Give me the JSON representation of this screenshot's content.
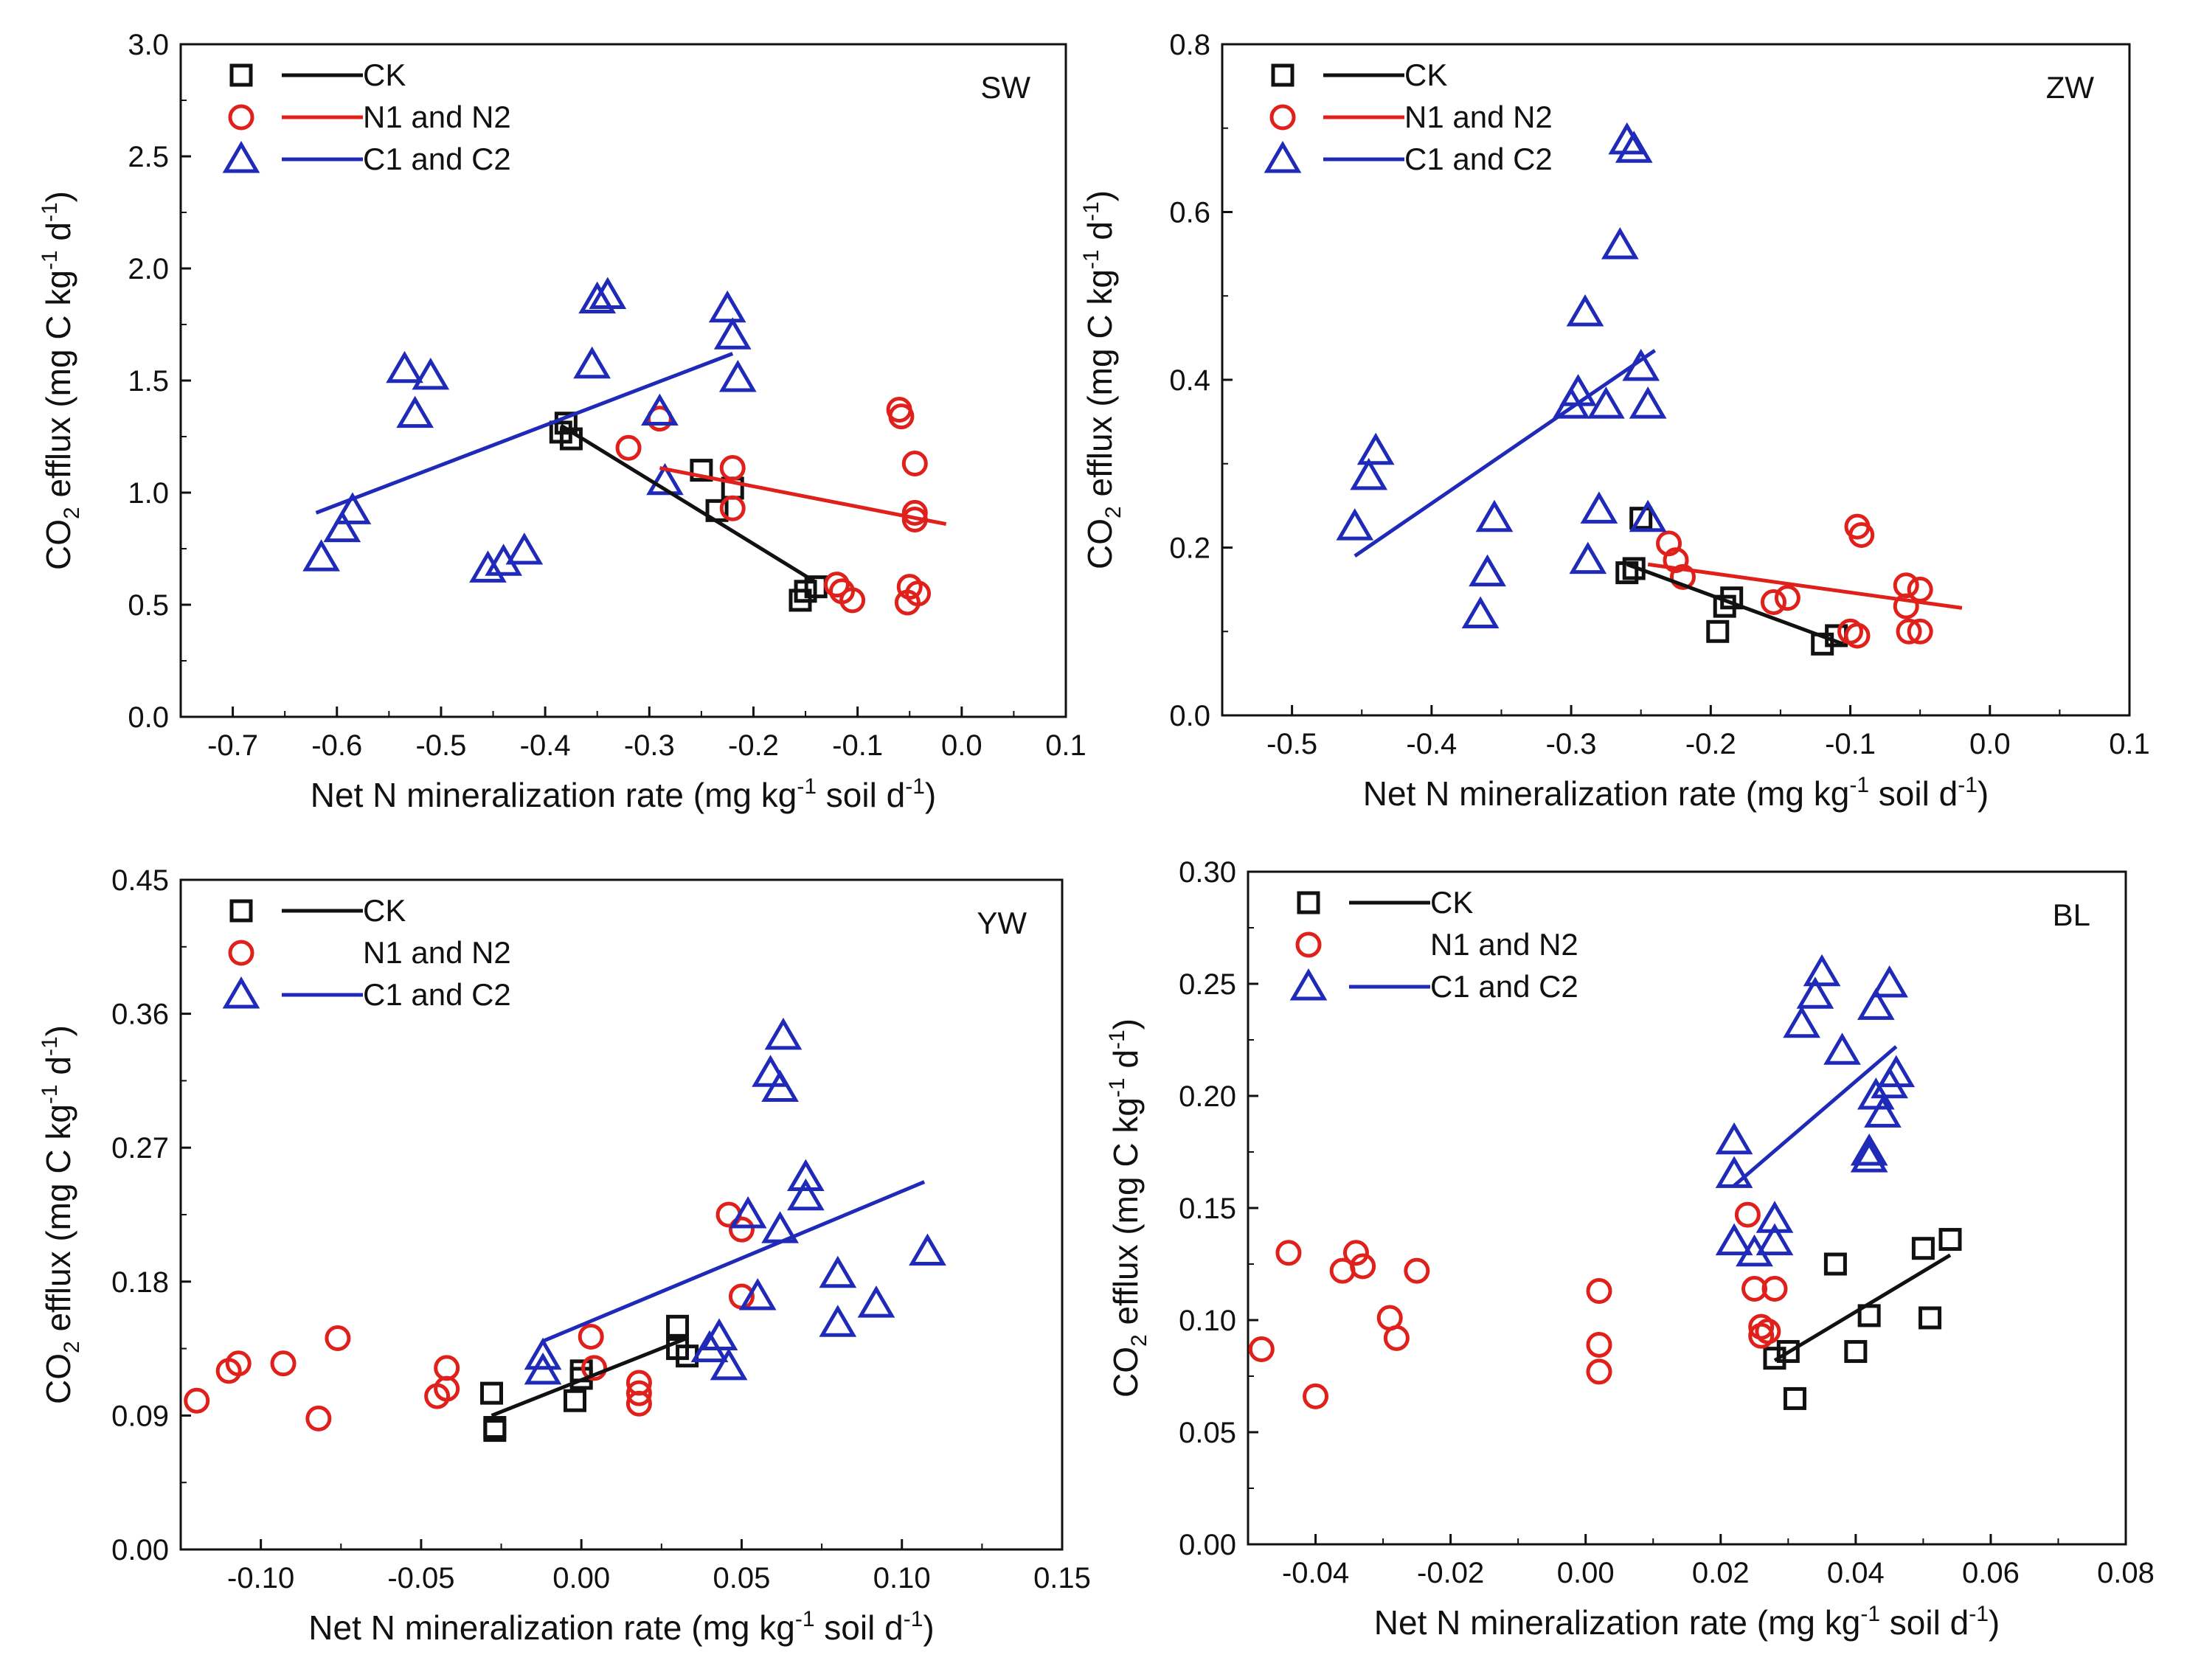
{
  "colors": {
    "ck": "#111111",
    "n": "#e0201b",
    "c": "#1f2ab8"
  },
  "chart_data": [
    {
      "type": "scatter",
      "panel_label": "SW",
      "xlabel": {
        "pre": "Net N mineralization rate (mg kg",
        "sup": "-1",
        "post": " soil d",
        "sup2": "-1",
        "end": ")"
      },
      "ylabel": {
        "pre": "CO",
        "sub": "2",
        "mid": " efflux (mg C kg",
        "sup": "-1",
        "mid2": " d",
        "sup2": "-1",
        "end": ")"
      },
      "xlim": [
        -0.75,
        0.1
      ],
      "ylim": [
        0,
        3.0
      ],
      "xticks": [
        -0.7,
        -0.6,
        -0.5,
        -0.4,
        -0.3,
        -0.2,
        -0.1,
        0.0,
        0.1
      ],
      "xtick_labels": [
        "-0.7",
        "-0.6",
        "-0.5",
        "-0.4",
        "-0.3",
        "-0.2",
        "-0.1",
        "0.0",
        "0.1"
      ],
      "yticks": [
        0,
        0.5,
        1.0,
        1.5,
        2.0,
        2.5,
        3.0
      ],
      "ytick_labels": [
        "0.0",
        "0.5",
        "1.0",
        "1.5",
        "2.0",
        "2.5",
        "3.0"
      ],
      "legend": [
        "CK",
        "N1 and N2",
        "C1 and C2"
      ],
      "series": [
        {
          "name": "CK",
          "marker": "square",
          "color": "#111111",
          "points": [
            [
              -0.385,
              1.27
            ],
            [
              -0.38,
              1.31
            ],
            [
              -0.375,
              1.24
            ],
            [
              -0.25,
              1.1
            ],
            [
              -0.235,
              0.92
            ],
            [
              -0.22,
              1.02
            ],
            [
              -0.155,
              0.52
            ],
            [
              -0.15,
              0.56
            ],
            [
              -0.14,
              0.58
            ]
          ],
          "fit": [
            [
              -0.385,
              1.3
            ],
            [
              -0.14,
              0.6
            ]
          ]
        },
        {
          "name": "N1 and N2",
          "marker": "circle",
          "color": "#e0201b",
          "points": [
            [
              -0.32,
              1.2
            ],
            [
              -0.29,
              1.33
            ],
            [
              -0.22,
              1.11
            ],
            [
              -0.22,
              0.93
            ],
            [
              -0.12,
              0.59
            ],
            [
              -0.115,
              0.56
            ],
            [
              -0.105,
              0.52
            ],
            [
              -0.06,
              1.37
            ],
            [
              -0.058,
              1.34
            ],
            [
              -0.05,
              0.58
            ],
            [
              -0.052,
              0.51
            ],
            [
              -0.045,
              1.13
            ],
            [
              -0.045,
              0.91
            ],
            [
              -0.045,
              0.88
            ],
            [
              -0.042,
              0.55
            ]
          ],
          "fit": [
            [
              -0.29,
              1.11
            ],
            [
              -0.015,
              0.86
            ]
          ]
        },
        {
          "name": "C1 and C2",
          "marker": "triangle",
          "color": "#1f2ab8",
          "points": [
            [
              -0.615,
              0.71
            ],
            [
              -0.595,
              0.84
            ],
            [
              -0.585,
              0.92
            ],
            [
              -0.535,
              1.55
            ],
            [
              -0.525,
              1.35
            ],
            [
              -0.51,
              1.52
            ],
            [
              -0.455,
              0.66
            ],
            [
              -0.44,
              0.69
            ],
            [
              -0.42,
              0.74
            ],
            [
              -0.355,
              1.57
            ],
            [
              -0.35,
              1.86
            ],
            [
              -0.34,
              1.88
            ],
            [
              -0.29,
              1.36
            ],
            [
              -0.285,
              1.05
            ],
            [
              -0.22,
              1.7
            ],
            [
              -0.215,
              1.51
            ],
            [
              -0.225,
              1.82
            ]
          ],
          "fit": [
            [
              -0.62,
              0.91
            ],
            [
              -0.22,
              1.62
            ]
          ]
        }
      ]
    },
    {
      "type": "scatter",
      "panel_label": "ZW",
      "xlabel": {
        "pre": "Net N mineralization rate (mg kg",
        "sup": "-1",
        "post": " soil d",
        "sup2": "-1",
        "end": ")"
      },
      "ylabel": {
        "pre": "CO",
        "sub": "2",
        "mid": " efflux (mg C kg",
        "sup": "-1",
        "mid2": " d",
        "sup2": "-1",
        "end": ")"
      },
      "xlim": [
        -0.55,
        0.1
      ],
      "ylim": [
        0,
        0.8
      ],
      "xticks": [
        -0.5,
        -0.4,
        -0.3,
        -0.2,
        -0.1,
        0.0,
        0.1
      ],
      "xtick_labels": [
        "-0.5",
        "-0.4",
        "-0.3",
        "-0.2",
        "-0.1",
        "0.0",
        "0.1"
      ],
      "yticks": [
        0,
        0.2,
        0.4,
        0.6,
        0.8
      ],
      "ytick_labels": [
        "0.0",
        "0.2",
        "0.4",
        "0.6",
        "0.8"
      ],
      "legend": [
        "CK",
        "N1 and N2",
        "C1 and C2"
      ],
      "series": [
        {
          "name": "CK",
          "marker": "square",
          "color": "#111111",
          "points": [
            [
              -0.26,
              0.17
            ],
            [
              -0.255,
              0.175
            ],
            [
              -0.25,
              0.235
            ],
            [
              -0.195,
              0.1
            ],
            [
              -0.19,
              0.13
            ],
            [
              -0.185,
              0.14
            ],
            [
              -0.12,
              0.085
            ],
            [
              -0.11,
              0.095
            ]
          ],
          "fit": [
            [
              -0.26,
              0.18
            ],
            [
              -0.105,
              0.085
            ]
          ]
        },
        {
          "name": "N1 and N2",
          "marker": "circle",
          "color": "#e0201b",
          "points": [
            [
              -0.23,
              0.205
            ],
            [
              -0.225,
              0.185
            ],
            [
              -0.22,
              0.165
            ],
            [
              -0.155,
              0.135
            ],
            [
              -0.145,
              0.14
            ],
            [
              -0.1,
              0.1
            ],
            [
              -0.095,
              0.225
            ],
            [
              -0.092,
              0.215
            ],
            [
              -0.095,
              0.095
            ],
            [
              -0.06,
              0.155
            ],
            [
              -0.06,
              0.13
            ],
            [
              -0.058,
              0.1
            ],
            [
              -0.05,
              0.15
            ],
            [
              -0.05,
              0.1
            ]
          ],
          "fit": [
            [
              -0.245,
              0.18
            ],
            [
              -0.02,
              0.128
            ]
          ]
        },
        {
          "name": "C1 and C2",
          "marker": "triangle",
          "color": "#1f2ab8",
          "points": [
            [
              -0.455,
              0.225
            ],
            [
              -0.445,
              0.285
            ],
            [
              -0.44,
              0.315
            ],
            [
              -0.365,
              0.12
            ],
            [
              -0.36,
              0.17
            ],
            [
              -0.355,
              0.235
            ],
            [
              -0.3,
              0.37
            ],
            [
              -0.295,
              0.385
            ],
            [
              -0.29,
              0.48
            ],
            [
              -0.288,
              0.185
            ],
            [
              -0.28,
              0.245
            ],
            [
              -0.275,
              0.37
            ],
            [
              -0.265,
              0.56
            ],
            [
              -0.26,
              0.685
            ],
            [
              -0.255,
              0.675
            ],
            [
              -0.25,
              0.415
            ],
            [
              -0.245,
              0.37
            ],
            [
              -0.245,
              0.235
            ]
          ],
          "fit": [
            [
              -0.455,
              0.19
            ],
            [
              -0.24,
              0.435
            ]
          ]
        }
      ]
    },
    {
      "type": "scatter",
      "panel_label": "YW",
      "xlabel": {
        "pre": "Net N mineralization rate (mg kg",
        "sup": "-1",
        "post": " soil d",
        "sup2": "-1",
        "end": ")"
      },
      "ylabel": {
        "pre": "CO",
        "sub": "2",
        "mid": " efflux (mg C kg",
        "sup": "-1",
        "mid2": " d",
        "sup2": "-1",
        "end": ")"
      },
      "xlim": [
        -0.125,
        0.15
      ],
      "ylim": [
        0,
        0.45
      ],
      "xticks": [
        -0.1,
        -0.05,
        0.0,
        0.05,
        0.1,
        0.15
      ],
      "xtick_labels": [
        "-0.10",
        "-0.05",
        "0.00",
        "0.05",
        "0.10",
        "0.15"
      ],
      "yticks": [
        0,
        0.09,
        0.18,
        0.27,
        0.36,
        0.45
      ],
      "ytick_labels": [
        "0.00",
        "0.09",
        "0.18",
        "0.27",
        "0.36",
        "0.45"
      ],
      "legend": [
        "CK",
        "N1 and N2",
        "C1 and C2"
      ],
      "series": [
        {
          "name": "CK",
          "marker": "square",
          "color": "#111111",
          "points": [
            [
              -0.028,
              0.105
            ],
            [
              -0.027,
              0.08
            ],
            [
              -0.027,
              0.082
            ],
            [
              -0.002,
              0.1
            ],
            [
              0.0,
              0.115
            ],
            [
              0.0,
              0.12
            ],
            [
              0.03,
              0.15
            ],
            [
              0.03,
              0.135
            ],
            [
              0.033,
              0.13
            ]
          ],
          "fit": [
            [
              -0.028,
              0.09
            ],
            [
              0.033,
              0.142
            ]
          ]
        },
        {
          "name": "N1 and N2",
          "marker": "circle",
          "color": "#e0201b",
          "points": [
            [
              -0.12,
              0.1
            ],
            [
              -0.11,
              0.12
            ],
            [
              -0.107,
              0.125
            ],
            [
              -0.093,
              0.125
            ],
            [
              -0.082,
              0.088
            ],
            [
              -0.076,
              0.142
            ],
            [
              -0.045,
              0.103
            ],
            [
              -0.042,
              0.108
            ],
            [
              -0.042,
              0.122
            ],
            [
              0.003,
              0.143
            ],
            [
              0.004,
              0.122
            ],
            [
              0.018,
              0.112
            ],
            [
              0.018,
              0.098
            ],
            [
              0.018,
              0.105
            ],
            [
              0.046,
              0.225
            ],
            [
              0.05,
              0.215
            ],
            [
              0.05,
              0.17
            ]
          ],
          "fit": []
        },
        {
          "name": "C1 and C2",
          "marker": "triangle",
          "color": "#1f2ab8",
          "points": [
            [
              -0.012,
              0.13
            ],
            [
              -0.012,
              0.12
            ],
            [
              0.04,
              0.135
            ],
            [
              0.043,
              0.143
            ],
            [
              0.046,
              0.123
            ],
            [
              0.052,
              0.225
            ],
            [
              0.055,
              0.17
            ],
            [
              0.059,
              0.32
            ],
            [
              0.062,
              0.31
            ],
            [
              0.063,
              0.345
            ],
            [
              0.062,
              0.215
            ],
            [
              0.07,
              0.25
            ],
            [
              0.07,
              0.237
            ],
            [
              0.08,
              0.185
            ],
            [
              0.08,
              0.152
            ],
            [
              0.092,
              0.165
            ],
            [
              0.108,
              0.2
            ]
          ],
          "fit": [
            [
              -0.012,
              0.14
            ],
            [
              0.107,
              0.247
            ]
          ]
        }
      ]
    },
    {
      "type": "scatter",
      "panel_label": "BL",
      "xlabel": {
        "pre": "Net N mineralization rate (mg kg",
        "sup": "-1",
        "post": " soil d",
        "sup2": "-1",
        "end": ")"
      },
      "ylabel": {
        "pre": "CO",
        "sub": "2",
        "mid": " efflux (mg C kg",
        "sup": "-1",
        "mid2": " d",
        "sup2": "-1",
        "end": ")"
      },
      "xlim": [
        -0.05,
        0.08
      ],
      "ylim": [
        0,
        0.3
      ],
      "xticks": [
        -0.04,
        -0.02,
        0.0,
        0.02,
        0.04,
        0.06,
        0.08
      ],
      "xtick_labels": [
        "-0.04",
        "-0.02",
        "0.00",
        "0.02",
        "0.04",
        "0.06",
        "0.08"
      ],
      "yticks": [
        0,
        0.05,
        0.1,
        0.15,
        0.2,
        0.25,
        0.3
      ],
      "ytick_labels": [
        "0.00",
        "0.05",
        "0.10",
        "0.15",
        "0.20",
        "0.25",
        "0.30"
      ],
      "legend": [
        "CK",
        "N1 and N2",
        "C1 and C2"
      ],
      "series": [
        {
          "name": "CK",
          "marker": "square",
          "color": "#111111",
          "points": [
            [
              0.028,
              0.083
            ],
            [
              0.03,
              0.086
            ],
            [
              0.031,
              0.065
            ],
            [
              0.037,
              0.125
            ],
            [
              0.04,
              0.086
            ],
            [
              0.042,
              0.102
            ],
            [
              0.05,
              0.132
            ],
            [
              0.051,
              0.101
            ],
            [
              0.054,
              0.136
            ]
          ],
          "fit": [
            [
              0.028,
              0.082
            ],
            [
              0.054,
              0.129
            ]
          ]
        },
        {
          "name": "N1 and N2",
          "marker": "circle",
          "color": "#e0201b",
          "points": [
            [
              -0.048,
              0.087
            ],
            [
              -0.044,
              0.13
            ],
            [
              -0.04,
              0.066
            ],
            [
              -0.036,
              0.122
            ],
            [
              -0.034,
              0.13
            ],
            [
              -0.033,
              0.124
            ],
            [
              -0.029,
              0.101
            ],
            [
              -0.028,
              0.092
            ],
            [
              -0.025,
              0.122
            ],
            [
              0.002,
              0.113
            ],
            [
              0.002,
              0.089
            ],
            [
              0.002,
              0.077
            ],
            [
              0.024,
              0.147
            ],
            [
              0.025,
              0.114
            ],
            [
              0.026,
              0.097
            ],
            [
              0.026,
              0.093
            ],
            [
              0.027,
              0.095
            ],
            [
              0.028,
              0.114
            ]
          ],
          "fit": []
        },
        {
          "name": "C1 and C2",
          "marker": "triangle",
          "color": "#1f2ab8",
          "points": [
            [
              0.022,
              0.18
            ],
            [
              0.022,
              0.165
            ],
            [
              0.022,
              0.135
            ],
            [
              0.025,
              0.13
            ],
            [
              0.028,
              0.145
            ],
            [
              0.028,
              0.135
            ],
            [
              0.032,
              0.232
            ],
            [
              0.034,
              0.245
            ],
            [
              0.035,
              0.255
            ],
            [
              0.038,
              0.22
            ],
            [
              0.042,
              0.172
            ],
            [
              0.042,
              0.175
            ],
            [
              0.043,
              0.24
            ],
            [
              0.043,
              0.2
            ],
            [
              0.044,
              0.192
            ],
            [
              0.045,
              0.25
            ],
            [
              0.045,
              0.205
            ],
            [
              0.046,
              0.21
            ]
          ],
          "fit": [
            [
              0.022,
              0.16
            ],
            [
              0.046,
              0.222
            ]
          ]
        }
      ]
    }
  ]
}
